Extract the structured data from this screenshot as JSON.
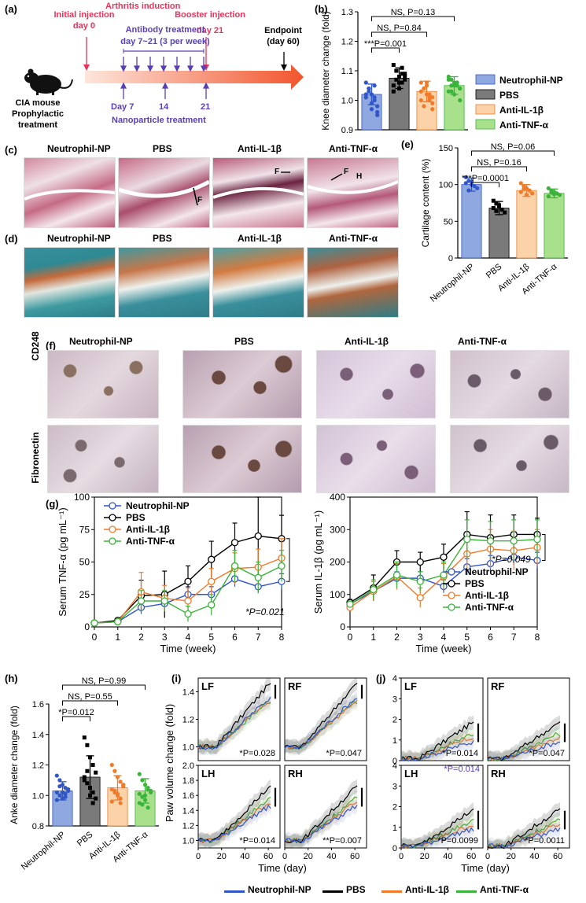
{
  "panel_labels": {
    "a": "(a)",
    "b": "(b)",
    "c": "(c)",
    "d": "(d)",
    "e": "(e)",
    "f": "(f)",
    "g": "(g)",
    "h": "(h)",
    "i": "(i)",
    "j": "(j)"
  },
  "timeline": {
    "initial_injection": "Initial injection",
    "day0": "day 0",
    "arthritis_induction": "Arthritis induction",
    "booster_injection": "Booster injection",
    "day21": "day 21",
    "endpoint": "Endpoint",
    "endpoint_day": "(day 60)",
    "antibody_treatment": "Antibody treatment",
    "antibody_days": "day 7~21 (3 per week)",
    "mouse_label_1": "CIA mouse",
    "mouse_label_2": "Prophylactic",
    "mouse_label_3": "treatment",
    "np_day7": "Day 7",
    "np_day14": "14",
    "np_day21": "21",
    "np_treatment": "Nanoparticle treatment",
    "colors": {
      "red": "#e8335a",
      "purple": "#5b3fb5",
      "arrow_start": "#fde6dc",
      "arrow_end": "#f2552c"
    }
  },
  "groups": [
    "Neutrophil-NP",
    "PBS",
    "Anti-IL-1β",
    "Anti-TNF-α"
  ],
  "group_colors": {
    "fill": [
      "#8fa8e0",
      "#7a7a7a",
      "#fcd3a8",
      "#a8e08c"
    ],
    "dot": [
      "#3056c7",
      "#000000",
      "#f07b2a",
      "#3cb43c"
    ]
  },
  "section_c": {
    "titles": [
      "Neutrophil-NP",
      "PBS",
      "Anti-IL-1β",
      "Anti-TNF-α"
    ],
    "annotations": [
      "F",
      "F",
      "F",
      "H"
    ]
  },
  "section_d": {
    "titles": [
      "Neutrophil-NP",
      "PBS",
      "Anti-IL-1β",
      "Anti-TNF-α"
    ]
  },
  "section_f": {
    "titles": [
      "Neutrophil-NP",
      "PBS",
      "Anti-IL-1β",
      "Anti-TNF-α"
    ],
    "rows": [
      "CD248",
      "Fibronectin"
    ]
  },
  "chart_data": [
    {
      "id": "b",
      "type": "bar",
      "ylabel": "Knee diameter change (fold)",
      "ylim": [
        0.9,
        1.3
      ],
      "yticks": [
        "0.9",
        "1.0",
        "1.1",
        "1.2",
        "1.3"
      ],
      "categories": [
        "Neutrophil-NP",
        "PBS",
        "Anti-IL-1β",
        "Anti-TNF-α"
      ],
      "values": [
        1.02,
        1.075,
        1.03,
        1.05
      ],
      "errors": [
        0.035,
        0.035,
        0.035,
        0.03
      ],
      "points": [
        [
          1.06,
          1.04,
          1.02,
          1.0,
          0.98,
          1.01,
          1.03,
          0.97,
          1.05,
          0.96,
          1.02,
          1.04,
          0.99,
          1.01,
          0.95
        ],
        [
          1.12,
          1.1,
          1.08,
          1.06,
          1.09,
          1.05,
          1.07,
          1.04,
          1.11,
          1.08,
          1.03,
          1.1,
          1.06,
          1.09,
          1.07
        ],
        [
          1.06,
          1.04,
          1.02,
          1.0,
          1.01,
          1.03,
          0.98,
          1.05,
          1.02,
          0.99,
          1.0,
          1.04,
          1.06,
          1.01,
          0.97
        ],
        [
          1.08,
          1.07,
          1.06,
          1.05,
          1.04,
          1.03,
          1.05,
          1.02,
          1.06,
          1.04,
          1.07,
          1.03,
          1.05,
          1.06,
          1.0
        ]
      ],
      "annotations": [
        "NS, P=0.13",
        "NS, P=0.84",
        "***P=0.001"
      ],
      "legend": [
        "Neutrophil-NP",
        "PBS",
        "Anti-IL-1β",
        "Anti-TNF-α"
      ]
    },
    {
      "id": "e",
      "type": "bar",
      "ylabel": "Cartilage content (%)",
      "ylim": [
        0,
        150
      ],
      "yticks": [
        "0",
        "50",
        "100",
        "150"
      ],
      "categories": [
        "Neutrophil-NP",
        "PBS",
        "Anti-IL-1β",
        "Anti-TNF-α"
      ],
      "values": [
        100,
        68,
        92,
        88
      ],
      "errors": [
        9,
        9,
        8,
        6
      ],
      "points": [
        [
          110,
          105,
          100,
          98,
          95,
          102,
          92,
          104
        ],
        [
          78,
          74,
          70,
          66,
          62,
          68,
          64,
          72
        ],
        [
          102,
          98,
          95,
          92,
          88,
          90,
          94,
          86
        ],
        [
          95,
          92,
          90,
          88,
          86,
          84,
          89,
          87
        ]
      ],
      "annotations": [
        "NS, P=0.06",
        "NS, P=0.16",
        "***P=0.0001"
      ]
    },
    {
      "id": "g1",
      "type": "line",
      "ylabel": "Serum TNF-α (pg mL⁻¹)",
      "xlabel": "Time (week)",
      "ylim": [
        0,
        100
      ],
      "yticks": [
        "0",
        "25",
        "50",
        "75",
        "100"
      ],
      "x": [
        0,
        1,
        2,
        3,
        4,
        5,
        6,
        7,
        8
      ],
      "series": [
        {
          "name": "Neutrophil-NP",
          "values": [
            3,
            4,
            15,
            18,
            25,
            25,
            37,
            31,
            35
          ],
          "errors": [
            1,
            2,
            5,
            6,
            6,
            6,
            6,
            5,
            6
          ]
        },
        {
          "name": "PBS",
          "values": [
            3,
            5,
            24,
            25,
            35,
            52,
            65,
            70,
            68
          ],
          "errors": [
            1,
            2,
            12,
            18,
            12,
            14,
            15,
            30,
            18
          ]
        },
        {
          "name": "Anti-IL-1β",
          "values": [
            3,
            4,
            27,
            22,
            20,
            35,
            45,
            46,
            53
          ],
          "errors": [
            1,
            2,
            15,
            10,
            10,
            10,
            12,
            14,
            15
          ]
        },
        {
          "name": "Anti-TNF-α",
          "values": [
            3,
            4,
            20,
            20,
            10,
            17,
            47,
            38,
            47
          ],
          "errors": [
            1,
            2,
            8,
            8,
            6,
            8,
            12,
            12,
            12
          ]
        }
      ],
      "annotation": "*P=0.021"
    },
    {
      "id": "g2",
      "type": "line",
      "ylabel": "Serum IL-1β (pg mL⁻¹)",
      "xlabel": "Time (week)",
      "ylim": [
        0,
        400
      ],
      "yticks": [
        "0",
        "100",
        "200",
        "300",
        "400"
      ],
      "x": [
        0,
        1,
        2,
        3,
        4,
        5,
        6,
        7,
        8
      ],
      "series": [
        {
          "name": "Neutrophil-NP",
          "values": [
            70,
            110,
            150,
            150,
            125,
            185,
            195,
            215,
            205
          ],
          "errors": [
            10,
            15,
            20,
            20,
            20,
            25,
            25,
            25,
            25
          ]
        },
        {
          "name": "PBS",
          "values": [
            75,
            120,
            200,
            200,
            215,
            285,
            275,
            285,
            285
          ],
          "errors": [
            10,
            40,
            35,
            30,
            40,
            70,
            70,
            60,
            50
          ]
        },
        {
          "name": "Anti-IL-1β",
          "values": [
            60,
            110,
            155,
            90,
            155,
            225,
            240,
            235,
            245
          ],
          "errors": [
            10,
            30,
            40,
            30,
            40,
            50,
            60,
            60,
            55
          ]
        },
        {
          "name": "Anti-TNF-α",
          "values": [
            70,
            115,
            160,
            140,
            160,
            270,
            265,
            265,
            270
          ],
          "errors": [
            10,
            30,
            40,
            30,
            40,
            60,
            60,
            65,
            60
          ]
        }
      ],
      "annotation": "*P=0.049"
    },
    {
      "id": "h",
      "type": "bar",
      "ylabel": "Anke diameter change (fold)",
      "ylim": [
        0.8,
        1.6
      ],
      "yticks": [
        "0.8",
        "1.0",
        "1.2",
        "1.4",
        "1.6"
      ],
      "categories": [
        "Neutrophil-NP",
        "PBS",
        "Anti-IL-1β",
        "Anti-TNF-α"
      ],
      "values": [
        1.03,
        1.12,
        1.05,
        1.03
      ],
      "errors": [
        0.06,
        0.14,
        0.08,
        0.08
      ],
      "points": [
        [
          1.13,
          1.1,
          1.07,
          1.05,
          1.03,
          1.02,
          1.0,
          0.98,
          1.01,
          1.04,
          0.97,
          1.06,
          1.02,
          0.99
        ],
        [
          1.38,
          1.33,
          1.25,
          1.2,
          1.15,
          1.12,
          1.08,
          1.05,
          1.02,
          0.98,
          1.1,
          1.16,
          1.0,
          0.95
        ],
        [
          1.2,
          1.16,
          1.12,
          1.09,
          1.06,
          1.04,
          1.02,
          1.0,
          0.98,
          1.07,
          0.96,
          1.03,
          1.01,
          0.95
        ],
        [
          1.14,
          1.1,
          1.07,
          1.05,
          1.03,
          1.01,
          0.99,
          0.97,
          1.04,
          1.02,
          0.95,
          0.94,
          1.0,
          0.92
        ]
      ],
      "annotations": [
        "NS, P=0.99",
        "NS, P=0.55",
        "*P=0.012"
      ]
    },
    {
      "id": "i",
      "type": "line",
      "ylabel": "Paw volume change (fold)",
      "xlabel": "Time (day)",
      "xticks": [
        "0",
        "20",
        "40",
        "60"
      ],
      "subplots": [
        {
          "label": "LF",
          "annotation": "*P=0.028",
          "ylim": [
            0.9,
            1.5
          ],
          "yticks": [
            "1.0",
            "1.2",
            "1.4"
          ]
        },
        {
          "label": "RF",
          "annotation": "*P=0.047",
          "ylim": [
            0.9,
            1.5
          ],
          "yticks": []
        },
        {
          "label": "LH",
          "annotation": "*P=0.014",
          "ylim": [
            0.9,
            2.0
          ],
          "yticks": [
            "1.0",
            "1.2",
            "1.4",
            "1.6",
            "1.8",
            "2.0"
          ]
        },
        {
          "label": "RH",
          "annotation": "**P=0.007",
          "ylim": [
            0.9,
            2.0
          ],
          "yticks": []
        }
      ]
    },
    {
      "id": "j",
      "type": "line",
      "ylabel": "Arthritis score",
      "xlabel": "Time (day)",
      "xticks": [
        "0",
        "20",
        "40",
        "60"
      ],
      "subplots": [
        {
          "label": "LF",
          "annotation": "*P=0.014",
          "annotation2": "*P=0.014",
          "ylim": [
            0,
            4
          ],
          "yticks": [
            "0",
            "1",
            "2",
            "3",
            "4"
          ]
        },
        {
          "label": "RF",
          "annotation": "*P=0.047",
          "ylim": [
            0,
            4
          ],
          "yticks": []
        },
        {
          "label": "LH",
          "annotation": "*P=0.0099",
          "ylim": [
            0,
            4
          ],
          "yticks": [
            "0",
            "1",
            "2",
            "3",
            "4"
          ]
        },
        {
          "label": "RH",
          "annotation": "*P=0.0011",
          "ylim": [
            0,
            4
          ],
          "yticks": []
        }
      ]
    }
  ],
  "bottom_legend": [
    "Neutrophil-NP",
    "PBS",
    "Anti-IL-1β",
    "Anti-TNF-α"
  ]
}
